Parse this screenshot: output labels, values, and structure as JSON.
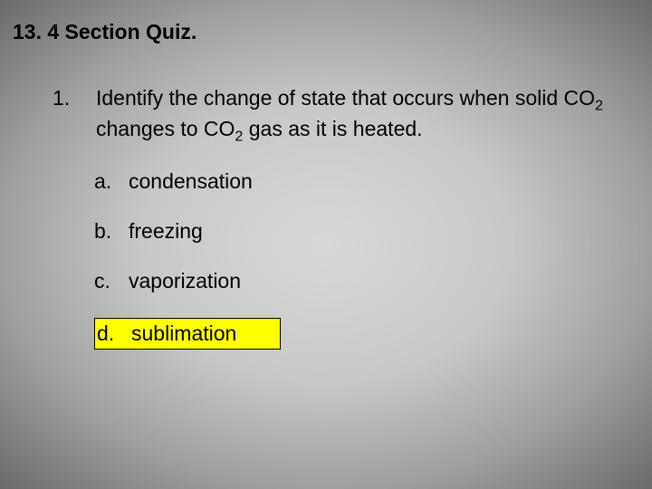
{
  "slide": {
    "title": "13. 4 Section Quiz.",
    "background": {
      "type": "radial-gradient",
      "center_color": "#d8d8d8",
      "mid_color": "#c8c8c8",
      "outer_color": "#a0a0a0",
      "edge_color": "#6a6a6a"
    },
    "title_fontsize": 23,
    "body_fontsize": 23,
    "text_color": "#000000",
    "highlight_color": "#ffff00",
    "highlight_border": "#000000"
  },
  "question": {
    "number": "1.",
    "text_before_sub1": "Identify the change of state that occurs when solid CO",
    "sub1": "2",
    "text_mid": " changes to CO",
    "sub2": "2",
    "text_after": " gas as it is heated."
  },
  "options": [
    {
      "label": "a.",
      "text": "condensation",
      "highlighted": false
    },
    {
      "label": "b.",
      "text": "freezing",
      "highlighted": false
    },
    {
      "label": "c.",
      "text": "vaporization",
      "highlighted": false
    },
    {
      "label": "d.",
      "text": "sublimation",
      "highlighted": true
    }
  ]
}
